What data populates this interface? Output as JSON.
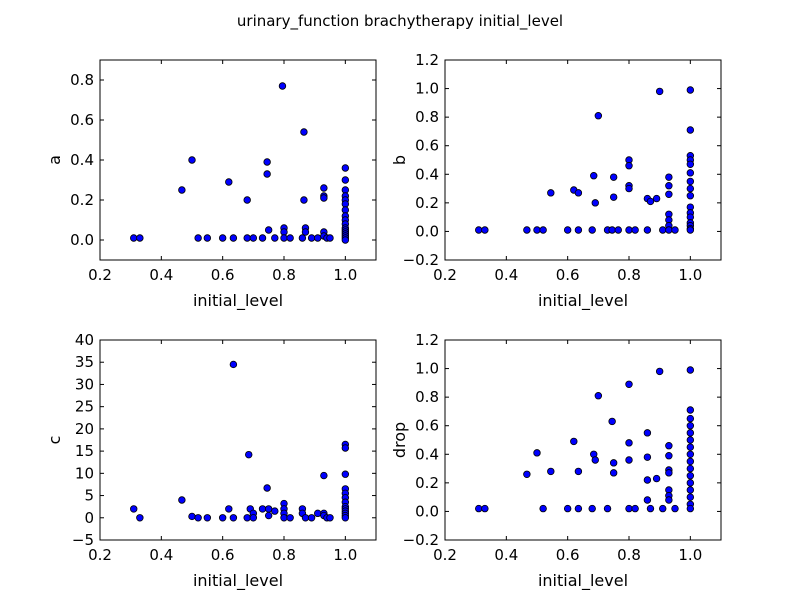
{
  "chart_data": {
    "title": "urinary_function brachytherapy initial_level",
    "subplots": [
      {
        "type": "scatter",
        "xlabel": "initial_level",
        "ylabel": "a",
        "xlim": [
          0.2,
          1.1
        ],
        "ylim": [
          -0.1,
          0.9
        ],
        "xticks": [
          "0.2",
          "0.4",
          "0.6",
          "0.8",
          "1.0"
        ],
        "yticks": [
          "0.0",
          "0.2",
          "0.4",
          "0.6",
          "0.8"
        ],
        "points": [
          [
            0.31,
            0.01
          ],
          [
            0.33,
            0.01
          ],
          [
            0.467,
            0.25
          ],
          [
            0.5,
            0.4
          ],
          [
            0.52,
            0.01
          ],
          [
            0.55,
            0.01
          ],
          [
            0.6,
            0.01
          ],
          [
            0.62,
            0.29
          ],
          [
            0.635,
            0.01
          ],
          [
            0.68,
            0.01
          ],
          [
            0.68,
            0.2
          ],
          [
            0.7,
            0.01
          ],
          [
            0.73,
            0.01
          ],
          [
            0.745,
            0.39
          ],
          [
            0.745,
            0.33
          ],
          [
            0.75,
            0.05
          ],
          [
            0.77,
            0.01
          ],
          [
            0.795,
            0.77
          ],
          [
            0.8,
            0.06
          ],
          [
            0.8,
            0.04
          ],
          [
            0.8,
            0.01
          ],
          [
            0.82,
            0.01
          ],
          [
            0.86,
            0.01
          ],
          [
            0.865,
            0.54
          ],
          [
            0.865,
            0.2
          ],
          [
            0.87,
            0.06
          ],
          [
            0.87,
            0.04
          ],
          [
            0.89,
            0.01
          ],
          [
            0.91,
            0.01
          ],
          [
            0.93,
            0.26
          ],
          [
            0.93,
            0.22
          ],
          [
            0.93,
            0.21
          ],
          [
            0.93,
            0.04
          ],
          [
            0.93,
            0.02
          ],
          [
            0.94,
            0.01
          ],
          [
            0.95,
            0.01
          ],
          [
            1.0,
            0.36
          ],
          [
            1.0,
            0.3
          ],
          [
            1.0,
            0.25
          ],
          [
            1.0,
            0.22
          ],
          [
            1.0,
            0.2
          ],
          [
            1.0,
            0.18
          ],
          [
            1.0,
            0.15
          ],
          [
            1.0,
            0.12
          ],
          [
            1.0,
            0.1
          ],
          [
            1.0,
            0.08
          ],
          [
            1.0,
            0.06
          ],
          [
            1.0,
            0.05
          ],
          [
            1.0,
            0.04
          ],
          [
            1.0,
            0.03
          ],
          [
            1.0,
            0.02
          ],
          [
            1.0,
            0.01
          ],
          [
            1.0,
            0.0
          ]
        ]
      },
      {
        "type": "scatter",
        "xlabel": "initial_level",
        "ylabel": "b",
        "xlim": [
          0.2,
          1.1
        ],
        "ylim": [
          -0.2,
          1.2
        ],
        "xticks": [
          "0.2",
          "0.4",
          "0.6",
          "0.8",
          "1.0"
        ],
        "yticks": [
          "−0.2",
          "0.0",
          "0.2",
          "0.4",
          "0.6",
          "0.8",
          "1.0",
          "1.2"
        ],
        "points": [
          [
            0.31,
            0.01
          ],
          [
            0.33,
            0.01
          ],
          [
            0.467,
            0.01
          ],
          [
            0.5,
            0.01
          ],
          [
            0.52,
            0.01
          ],
          [
            0.545,
            0.27
          ],
          [
            0.6,
            0.01
          ],
          [
            0.62,
            0.29
          ],
          [
            0.635,
            0.27
          ],
          [
            0.635,
            0.01
          ],
          [
            0.68,
            0.01
          ],
          [
            0.685,
            0.39
          ],
          [
            0.69,
            0.2
          ],
          [
            0.7,
            0.81
          ],
          [
            0.73,
            0.01
          ],
          [
            0.745,
            0.01
          ],
          [
            0.75,
            0.38
          ],
          [
            0.75,
            0.24
          ],
          [
            0.765,
            0.01
          ],
          [
            0.8,
            0.5
          ],
          [
            0.8,
            0.46
          ],
          [
            0.8,
            0.32
          ],
          [
            0.8,
            0.3
          ],
          [
            0.8,
            0.01
          ],
          [
            0.82,
            0.01
          ],
          [
            0.86,
            0.23
          ],
          [
            0.86,
            0.01
          ],
          [
            0.87,
            0.21
          ],
          [
            0.89,
            0.23
          ],
          [
            0.9,
            0.98
          ],
          [
            0.91,
            0.01
          ],
          [
            0.93,
            0.38
          ],
          [
            0.93,
            0.32
          ],
          [
            0.93,
            0.26
          ],
          [
            0.93,
            0.12
          ],
          [
            0.93,
            0.08
          ],
          [
            0.93,
            0.04
          ],
          [
            0.93,
            0.01
          ],
          [
            0.95,
            0.01
          ],
          [
            1.0,
            0.99
          ],
          [
            1.0,
            0.71
          ],
          [
            1.0,
            0.53
          ],
          [
            1.0,
            0.5
          ],
          [
            1.0,
            0.47
          ],
          [
            1.0,
            0.41
          ],
          [
            1.0,
            0.35
          ],
          [
            1.0,
            0.3
          ],
          [
            1.0,
            0.25
          ],
          [
            1.0,
            0.17
          ],
          [
            1.0,
            0.13
          ],
          [
            1.0,
            0.1
          ],
          [
            1.0,
            0.06
          ],
          [
            1.0,
            0.04
          ],
          [
            1.0,
            0.02
          ],
          [
            1.0,
            0.01
          ]
        ]
      },
      {
        "type": "scatter",
        "xlabel": "initial_level",
        "ylabel": "c",
        "xlim": [
          0.2,
          1.1
        ],
        "ylim": [
          -5,
          40
        ],
        "xticks": [
          "0.2",
          "0.4",
          "0.6",
          "0.8",
          "1.0"
        ],
        "yticks": [
          "−5",
          "0",
          "5",
          "10",
          "15",
          "20",
          "25",
          "30",
          "35",
          "40"
        ],
        "points": [
          [
            0.31,
            2.0
          ],
          [
            0.33,
            0.0
          ],
          [
            0.467,
            4.0
          ],
          [
            0.5,
            0.3
          ],
          [
            0.52,
            0.0
          ],
          [
            0.55,
            0.0
          ],
          [
            0.6,
            0.0
          ],
          [
            0.62,
            2.0
          ],
          [
            0.635,
            34.5
          ],
          [
            0.635,
            0.0
          ],
          [
            0.68,
            0.0
          ],
          [
            0.685,
            14.2
          ],
          [
            0.69,
            2.0
          ],
          [
            0.7,
            1.0
          ],
          [
            0.7,
            0.0
          ],
          [
            0.73,
            2.0
          ],
          [
            0.745,
            6.7
          ],
          [
            0.75,
            2.0
          ],
          [
            0.75,
            0.5
          ],
          [
            0.77,
            1.5
          ],
          [
            0.8,
            3.2
          ],
          [
            0.8,
            2.0
          ],
          [
            0.8,
            1.0
          ],
          [
            0.8,
            0.0
          ],
          [
            0.82,
            0.0
          ],
          [
            0.86,
            2.0
          ],
          [
            0.86,
            1.0
          ],
          [
            0.87,
            0.0
          ],
          [
            0.89,
            0.0
          ],
          [
            0.91,
            1.0
          ],
          [
            0.93,
            9.5
          ],
          [
            0.93,
            1.0
          ],
          [
            0.93,
            0.5
          ],
          [
            0.94,
            0.0
          ],
          [
            0.95,
            0.0
          ],
          [
            1.0,
            16.5
          ],
          [
            1.0,
            15.7
          ],
          [
            1.0,
            9.8
          ],
          [
            1.0,
            6.5
          ],
          [
            1.0,
            5.5
          ],
          [
            1.0,
            4.5
          ],
          [
            1.0,
            3.5
          ],
          [
            1.0,
            2.5
          ],
          [
            1.0,
            2.0
          ],
          [
            1.0,
            1.5
          ],
          [
            1.0,
            1.0
          ],
          [
            1.0,
            0.5
          ],
          [
            1.0,
            0.0
          ]
        ]
      },
      {
        "type": "scatter",
        "xlabel": "initial_level",
        "ylabel": "drop",
        "xlim": [
          0.2,
          1.1
        ],
        "ylim": [
          -0.2,
          1.2
        ],
        "xticks": [
          "0.2",
          "0.4",
          "0.6",
          "0.8",
          "1.0"
        ],
        "yticks": [
          "−0.2",
          "0.0",
          "0.2",
          "0.4",
          "0.6",
          "0.8",
          "1.0",
          "1.2"
        ],
        "points": [
          [
            0.31,
            0.02
          ],
          [
            0.33,
            0.02
          ],
          [
            0.467,
            0.26
          ],
          [
            0.5,
            0.41
          ],
          [
            0.52,
            0.02
          ],
          [
            0.545,
            0.28
          ],
          [
            0.6,
            0.02
          ],
          [
            0.62,
            0.49
          ],
          [
            0.635,
            0.28
          ],
          [
            0.635,
            0.02
          ],
          [
            0.68,
            0.02
          ],
          [
            0.685,
            0.4
          ],
          [
            0.69,
            0.36
          ],
          [
            0.7,
            0.81
          ],
          [
            0.73,
            0.02
          ],
          [
            0.745,
            0.63
          ],
          [
            0.75,
            0.34
          ],
          [
            0.75,
            0.27
          ],
          [
            0.8,
            0.89
          ],
          [
            0.8,
            0.48
          ],
          [
            0.8,
            0.36
          ],
          [
            0.8,
            0.02
          ],
          [
            0.82,
            0.02
          ],
          [
            0.86,
            0.55
          ],
          [
            0.86,
            0.38
          ],
          [
            0.86,
            0.22
          ],
          [
            0.86,
            0.08
          ],
          [
            0.87,
            0.02
          ],
          [
            0.89,
            0.23
          ],
          [
            0.9,
            0.98
          ],
          [
            0.91,
            0.02
          ],
          [
            0.93,
            0.46
          ],
          [
            0.93,
            0.39
          ],
          [
            0.93,
            0.29
          ],
          [
            0.93,
            0.27
          ],
          [
            0.93,
            0.15
          ],
          [
            0.93,
            0.11
          ],
          [
            0.93,
            0.08
          ],
          [
            0.95,
            0.02
          ],
          [
            1.0,
            0.99
          ],
          [
            1.0,
            0.71
          ],
          [
            1.0,
            0.65
          ],
          [
            1.0,
            0.6
          ],
          [
            1.0,
            0.55
          ],
          [
            1.0,
            0.5
          ],
          [
            1.0,
            0.45
          ],
          [
            1.0,
            0.4
          ],
          [
            1.0,
            0.35
          ],
          [
            1.0,
            0.3
          ],
          [
            1.0,
            0.25
          ],
          [
            1.0,
            0.2
          ],
          [
            1.0,
            0.15
          ],
          [
            1.0,
            0.1
          ],
          [
            1.0,
            0.05
          ],
          [
            1.0,
            0.02
          ]
        ]
      }
    ]
  }
}
